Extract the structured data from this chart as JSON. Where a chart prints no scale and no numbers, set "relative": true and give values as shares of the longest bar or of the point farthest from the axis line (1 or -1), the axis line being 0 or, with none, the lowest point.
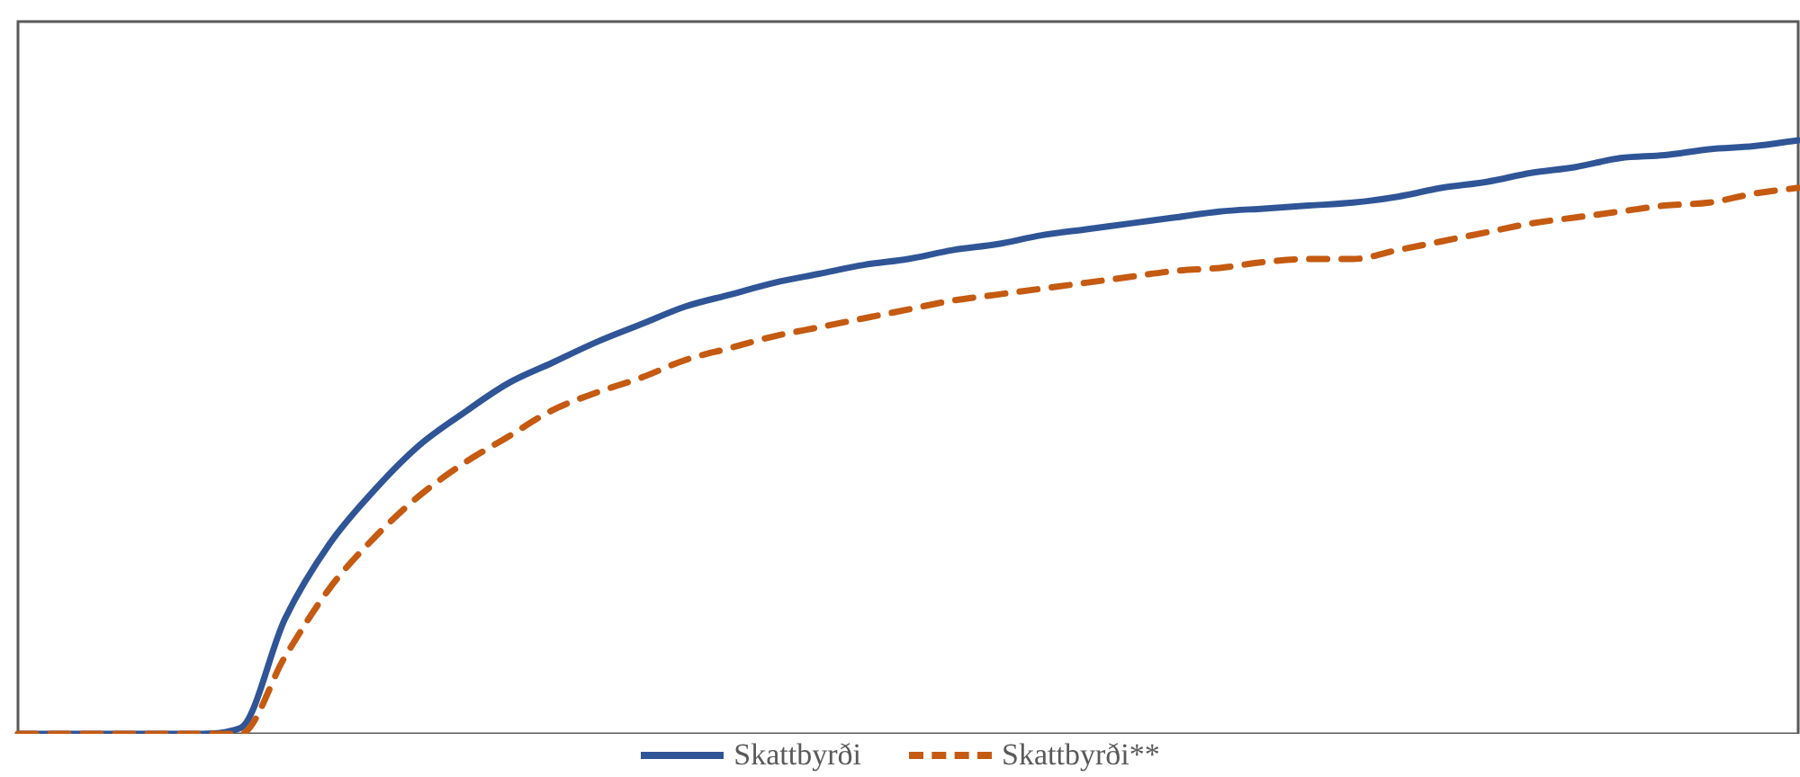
{
  "chart_data": {
    "type": "line",
    "relative": true,
    "legend": "bottom",
    "categories": [
      null,
      null,
      null,
      null,
      null,
      null,
      null,
      null,
      null,
      null,
      null,
      null,
      null,
      null,
      null,
      null,
      null,
      null,
      null,
      null,
      null,
      null,
      null,
      null,
      null,
      null,
      null,
      null,
      null,
      null,
      null,
      null,
      null,
      null,
      null,
      null,
      null,
      null,
      null,
      null,
      null
    ],
    "series": [
      {
        "name": "Skattbyrði",
        "color": "#2f5597",
        "line_style": "solid",
        "values": [
          0,
          0,
          0,
          0,
          0,
          0.01,
          0.194,
          0.32,
          0.41,
          0.485,
          0.54,
          0.59,
          0.625,
          0.66,
          0.69,
          0.72,
          0.74,
          0.76,
          0.775,
          0.79,
          0.8,
          0.815,
          0.825,
          0.84,
          0.85,
          0.86,
          0.87,
          0.88,
          0.885,
          0.89,
          0.895,
          0.905,
          0.92,
          0.93,
          0.945,
          0.955,
          0.97,
          0.975,
          0.985,
          0.99,
          1
        ]
      },
      {
        "name": "Skattbyrði**",
        "color": "#c55a11",
        "line_style": "dashed",
        "values": [
          0,
          0,
          0,
          0,
          0,
          0,
          0.13,
          0.245,
          0.33,
          0.4,
          0.455,
          0.5,
          0.545,
          0.575,
          0.6,
          0.63,
          0.65,
          0.67,
          0.685,
          0.7,
          0.715,
          0.73,
          0.74,
          0.75,
          0.76,
          0.77,
          0.78,
          0.785,
          0.795,
          0.8,
          0.8,
          0.815,
          0.83,
          0.845,
          0.86,
          0.87,
          0.88,
          0.89,
          0.895,
          0.91,
          0.92
        ]
      }
    ]
  }
}
